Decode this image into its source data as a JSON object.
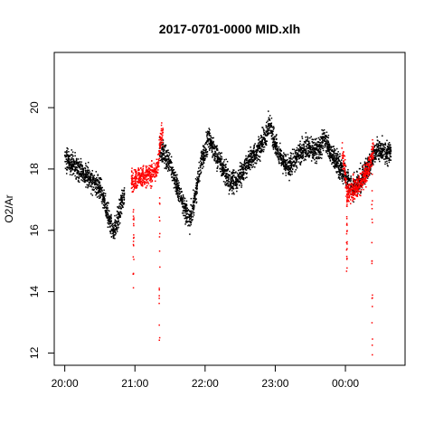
{
  "chart_data": {
    "type": "scatter",
    "title": "2017-0701-0000 MID.xlh",
    "xlabel": "",
    "ylabel": "O2/Ar",
    "x_ticks": [
      "20:00",
      "21:00",
      "22:00",
      "23:00",
      "00:00"
    ],
    "x_tick_hours": [
      0,
      1,
      2,
      3,
      4
    ],
    "y_ticks": [
      12,
      14,
      16,
      18,
      20
    ],
    "xlim_hours": [
      -0.15,
      4.85
    ],
    "ylim": [
      11.6,
      21.8
    ],
    "grid": false,
    "legend": "none",
    "colors": {
      "normal": "#000000",
      "flagged": "#ff0000"
    },
    "series": [
      {
        "color_key": "normal",
        "trend": [
          {
            "x": 0.0,
            "y": 18.3
          },
          {
            "x": 0.1,
            "y": 18.2
          },
          {
            "x": 0.2,
            "y": 18.0
          },
          {
            "x": 0.3,
            "y": 17.8
          },
          {
            "x": 0.4,
            "y": 17.6
          },
          {
            "x": 0.5,
            "y": 17.4
          },
          {
            "x": 0.6,
            "y": 16.6
          },
          {
            "x": 0.65,
            "y": 16.2
          },
          {
            "x": 0.7,
            "y": 16.0
          },
          {
            "x": 0.75,
            "y": 16.3
          },
          {
            "x": 0.8,
            "y": 16.8
          },
          {
            "x": 0.85,
            "y": 17.2
          },
          {
            "x": 1.35,
            "y": 18.7
          },
          {
            "x": 1.5,
            "y": 18.2
          },
          {
            "x": 1.6,
            "y": 17.4
          },
          {
            "x": 1.7,
            "y": 16.8
          },
          {
            "x": 1.78,
            "y": 16.3
          },
          {
            "x": 1.85,
            "y": 17.0
          },
          {
            "x": 1.95,
            "y": 18.3
          },
          {
            "x": 2.05,
            "y": 19.0
          },
          {
            "x": 2.15,
            "y": 18.5
          },
          {
            "x": 2.25,
            "y": 18.0
          },
          {
            "x": 2.35,
            "y": 17.6
          },
          {
            "x": 2.45,
            "y": 17.6
          },
          {
            "x": 2.55,
            "y": 18.0
          },
          {
            "x": 2.65,
            "y": 18.3
          },
          {
            "x": 2.75,
            "y": 18.6
          },
          {
            "x": 2.85,
            "y": 19.0
          },
          {
            "x": 2.92,
            "y": 19.5
          },
          {
            "x": 3.0,
            "y": 18.8
          },
          {
            "x": 3.1,
            "y": 18.3
          },
          {
            "x": 3.2,
            "y": 18.0
          },
          {
            "x": 3.3,
            "y": 18.4
          },
          {
            "x": 3.4,
            "y": 18.6
          },
          {
            "x": 3.5,
            "y": 18.7
          },
          {
            "x": 3.6,
            "y": 18.6
          },
          {
            "x": 3.7,
            "y": 19.0
          },
          {
            "x": 3.8,
            "y": 18.5
          },
          {
            "x": 4.1,
            "y": 17.4
          },
          {
            "x": 4.2,
            "y": 17.6
          },
          {
            "x": 4.45,
            "y": 18.6
          },
          {
            "x": 4.55,
            "y": 18.5
          },
          {
            "x": 4.65,
            "y": 18.6
          }
        ]
      },
      {
        "color_key": "flagged",
        "trend": [
          {
            "x": 0.95,
            "y": 17.6
          },
          {
            "x": 1.0,
            "y": 17.6
          },
          {
            "x": 1.05,
            "y": 17.8
          },
          {
            "x": 1.1,
            "y": 17.7
          },
          {
            "x": 1.2,
            "y": 17.8
          },
          {
            "x": 1.28,
            "y": 17.9
          },
          {
            "x": 1.32,
            "y": 18.0
          },
          {
            "x": 1.37,
            "y": 19.1
          },
          {
            "x": 1.4,
            "y": 19.2
          },
          {
            "x": 3.95,
            "y": 18.5
          },
          {
            "x": 3.98,
            "y": 18.2
          },
          {
            "x": 4.02,
            "y": 17.3
          },
          {
            "x": 4.05,
            "y": 17.2
          },
          {
            "x": 4.2,
            "y": 17.5
          },
          {
            "x": 4.33,
            "y": 18.0
          },
          {
            "x": 4.4,
            "y": 18.7
          }
        ],
        "low_spikes": [
          {
            "x": 0.98,
            "y_min": 14.1
          },
          {
            "x": 1.35,
            "y_min": 12.0
          },
          {
            "x": 4.02,
            "y_min": 14.5
          },
          {
            "x": 4.38,
            "y_min": 11.9
          }
        ]
      }
    ]
  }
}
